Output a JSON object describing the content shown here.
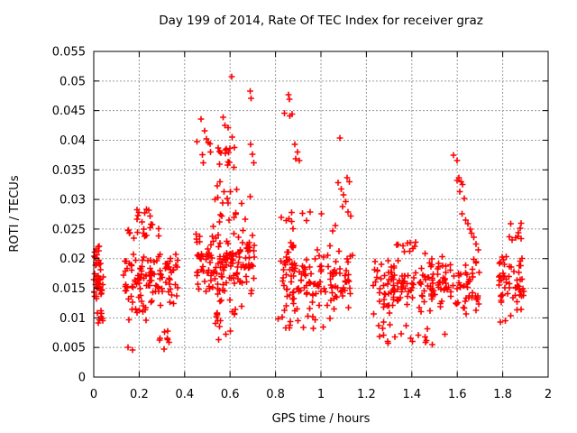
{
  "window": {
    "background": "#ffffff"
  },
  "chart_data": {
    "type": "scatter",
    "title": "Day 199 of 2014, Rate Of TEC Index for receiver graz",
    "xlabel": "GPS time / hours",
    "ylabel": "ROTI / TECUs",
    "xlim": [
      0,
      2
    ],
    "ylim": [
      0,
      0.055
    ],
    "xticks": {
      "values": [
        0,
        0.2,
        0.4,
        0.6,
        0.8,
        1,
        1.2,
        1.4,
        1.6,
        1.8,
        2
      ],
      "labels": [
        "0",
        "0.2",
        "0.4",
        "0.6",
        "0.8",
        "1",
        "1.2",
        "1.4",
        "1.6",
        "1.8",
        "2"
      ]
    },
    "yticks": {
      "values": [
        0,
        0.005,
        0.01,
        0.015,
        0.02,
        0.025,
        0.03,
        0.035,
        0.04,
        0.045,
        0.05,
        0.055
      ],
      "labels": [
        "0",
        "0.005",
        "0.01",
        "0.015",
        "0.02",
        "0.025",
        "0.03",
        "0.035",
        "0.04",
        "0.045",
        "0.05",
        "0.055"
      ]
    },
    "grid": {
      "on": true,
      "style": "dashed",
      "color": "#9a9a9a"
    },
    "legend": "none",
    "marker": {
      "symbol": "plus",
      "color": "#ff0000",
      "size": 7,
      "stroke_width": 1.6
    },
    "series_name": "ROTI",
    "points": [
      [
        0.607,
        0.0507
      ],
      [
        0.688,
        0.0483
      ],
      [
        0.692,
        0.0471
      ],
      [
        0.473,
        0.0436
      ],
      [
        0.488,
        0.0416
      ],
      [
        0.57,
        0.0439
      ],
      [
        0.578,
        0.0425
      ],
      [
        0.592,
        0.0421
      ],
      [
        0.497,
        0.0402
      ],
      [
        0.504,
        0.0396
      ],
      [
        0.61,
        0.0405
      ],
      [
        0.455,
        0.0398
      ],
      [
        0.69,
        0.0393
      ],
      [
        0.698,
        0.0376
      ],
      [
        0.705,
        0.0362
      ],
      [
        0.84,
        0.0446
      ],
      [
        0.857,
        0.0477
      ],
      [
        0.862,
        0.0469
      ],
      [
        0.864,
        0.0441
      ],
      [
        0.873,
        0.0444
      ],
      [
        0.885,
        0.0393
      ],
      [
        0.897,
        0.038
      ],
      [
        0.905,
        0.0366
      ],
      [
        0.888,
        0.0369
      ],
      [
        1.083,
        0.0404
      ],
      [
        1.075,
        0.0328
      ],
      [
        1.09,
        0.0318
      ],
      [
        1.1,
        0.0308
      ],
      [
        1.115,
        0.0337
      ],
      [
        1.125,
        0.033
      ],
      [
        1.11,
        0.0296
      ],
      [
        1.095,
        0.0288
      ],
      [
        1.12,
        0.0279
      ],
      [
        1.131,
        0.0272
      ],
      [
        1.583,
        0.0375
      ],
      [
        1.599,
        0.0366
      ],
      [
        1.6,
        0.0332
      ],
      [
        1.608,
        0.0337
      ],
      [
        1.617,
        0.033
      ],
      [
        1.624,
        0.0325
      ],
      [
        1.612,
        0.0313
      ],
      [
        1.63,
        0.0302
      ],
      [
        1.622,
        0.0276
      ],
      [
        1.636,
        0.0265
      ],
      [
        1.647,
        0.0259
      ],
      [
        1.656,
        0.025
      ],
      [
        1.662,
        0.0243
      ],
      [
        1.672,
        0.0236
      ],
      [
        1.682,
        0.0225
      ],
      [
        1.692,
        0.0215
      ],
      [
        0.242,
        0.0282
      ],
      [
        0.19,
        0.0267
      ],
      [
        0.212,
        0.0262
      ],
      [
        0.252,
        0.0258
      ],
      [
        0.825,
        0.027
      ],
      [
        0.848,
        0.0264
      ],
      [
        0.937,
        0.0264
      ],
      [
        1.063,
        0.0256
      ],
      [
        0.151,
        0.005
      ],
      [
        0.17,
        0.0046
      ],
      [
        0.31,
        0.0047
      ],
      [
        0.55,
        0.0063
      ],
      [
        0.582,
        0.0072
      ],
      [
        0.601,
        0.0078
      ],
      [
        1.294,
        0.006
      ],
      [
        1.353,
        0.0073
      ],
      [
        1.464,
        0.0062
      ],
      [
        1.49,
        0.0055
      ],
      [
        1.79,
        0.0093
      ],
      [
        1.812,
        0.0095
      ]
    ],
    "clusters": [
      {
        "name": "c1-core",
        "n": 30,
        "x": [
          0.0,
          0.042
        ],
        "y": [
          0.0125,
          0.0185
        ],
        "dist": "tri"
      },
      {
        "name": "c1-top",
        "n": 14,
        "x": [
          0.0,
          0.03
        ],
        "y": [
          0.0185,
          0.0225
        ],
        "dist": "uni"
      },
      {
        "name": "c1-low",
        "n": 8,
        "x": [
          0.015,
          0.042
        ],
        "y": [
          0.009,
          0.0115
        ],
        "dist": "uni"
      },
      {
        "name": "c2-core",
        "n": 110,
        "x": [
          0.13,
          0.37
        ],
        "y": [
          0.0115,
          0.022
        ],
        "dist": "tri"
      },
      {
        "name": "c2-upper",
        "n": 15,
        "x": [
          0.15,
          0.3
        ],
        "y": [
          0.022,
          0.026
        ],
        "dist": "uni"
      },
      {
        "name": "c2-top",
        "n": 6,
        "x": [
          0.19,
          0.26
        ],
        "y": [
          0.026,
          0.0285
        ],
        "dist": "uni"
      },
      {
        "name": "c2-low",
        "n": 10,
        "x": [
          0.14,
          0.23
        ],
        "y": [
          0.0095,
          0.0118
        ],
        "dist": "uni"
      },
      {
        "name": "c2-tail",
        "n": 7,
        "x": [
          0.28,
          0.35
        ],
        "y": [
          0.0058,
          0.0078
        ],
        "dist": "uni"
      },
      {
        "name": "c3-core",
        "n": 150,
        "x": [
          0.45,
          0.71
        ],
        "y": [
          0.0115,
          0.026
        ],
        "dist": "tri"
      },
      {
        "name": "c3-upper",
        "n": 20,
        "x": [
          0.5,
          0.69
        ],
        "y": [
          0.026,
          0.033
        ],
        "dist": "uni"
      },
      {
        "name": "c3-knot",
        "n": 18,
        "x": [
          0.47,
          0.62
        ],
        "y": [
          0.035,
          0.0395
        ],
        "dist": "tri"
      },
      {
        "name": "c3-tail",
        "n": 12,
        "x": [
          0.52,
          0.63
        ],
        "y": [
          0.0085,
          0.0115
        ],
        "dist": "uni"
      },
      {
        "name": "c4-core",
        "n": 140,
        "x": [
          0.82,
          1.14
        ],
        "y": [
          0.0105,
          0.023
        ],
        "dist": "tri"
      },
      {
        "name": "c4-upper",
        "n": 8,
        "x": [
          0.84,
          1.06
        ],
        "y": [
          0.0245,
          0.0295
        ],
        "dist": "uni"
      },
      {
        "name": "c4-low",
        "n": 14,
        "x": [
          0.8,
          1.06
        ],
        "y": [
          0.0082,
          0.0103
        ],
        "dist": "uni"
      },
      {
        "name": "c5-core",
        "n": 190,
        "x": [
          1.23,
          1.7
        ],
        "y": [
          0.01,
          0.021
        ],
        "dist": "tri"
      },
      {
        "name": "c5-bumps",
        "n": 10,
        "x": [
          1.33,
          1.42
        ],
        "y": [
          0.021,
          0.023
        ],
        "dist": "uni"
      },
      {
        "name": "c5-tail",
        "n": 16,
        "x": [
          1.25,
          1.55
        ],
        "y": [
          0.0055,
          0.0095
        ],
        "dist": "uni"
      },
      {
        "name": "c6-core",
        "n": 55,
        "x": [
          1.78,
          1.895
        ],
        "y": [
          0.0095,
          0.0225
        ],
        "dist": "tri"
      },
      {
        "name": "c6-top",
        "n": 9,
        "x": [
          1.82,
          1.89
        ],
        "y": [
          0.023,
          0.026
        ],
        "dist": "uni"
      }
    ]
  }
}
